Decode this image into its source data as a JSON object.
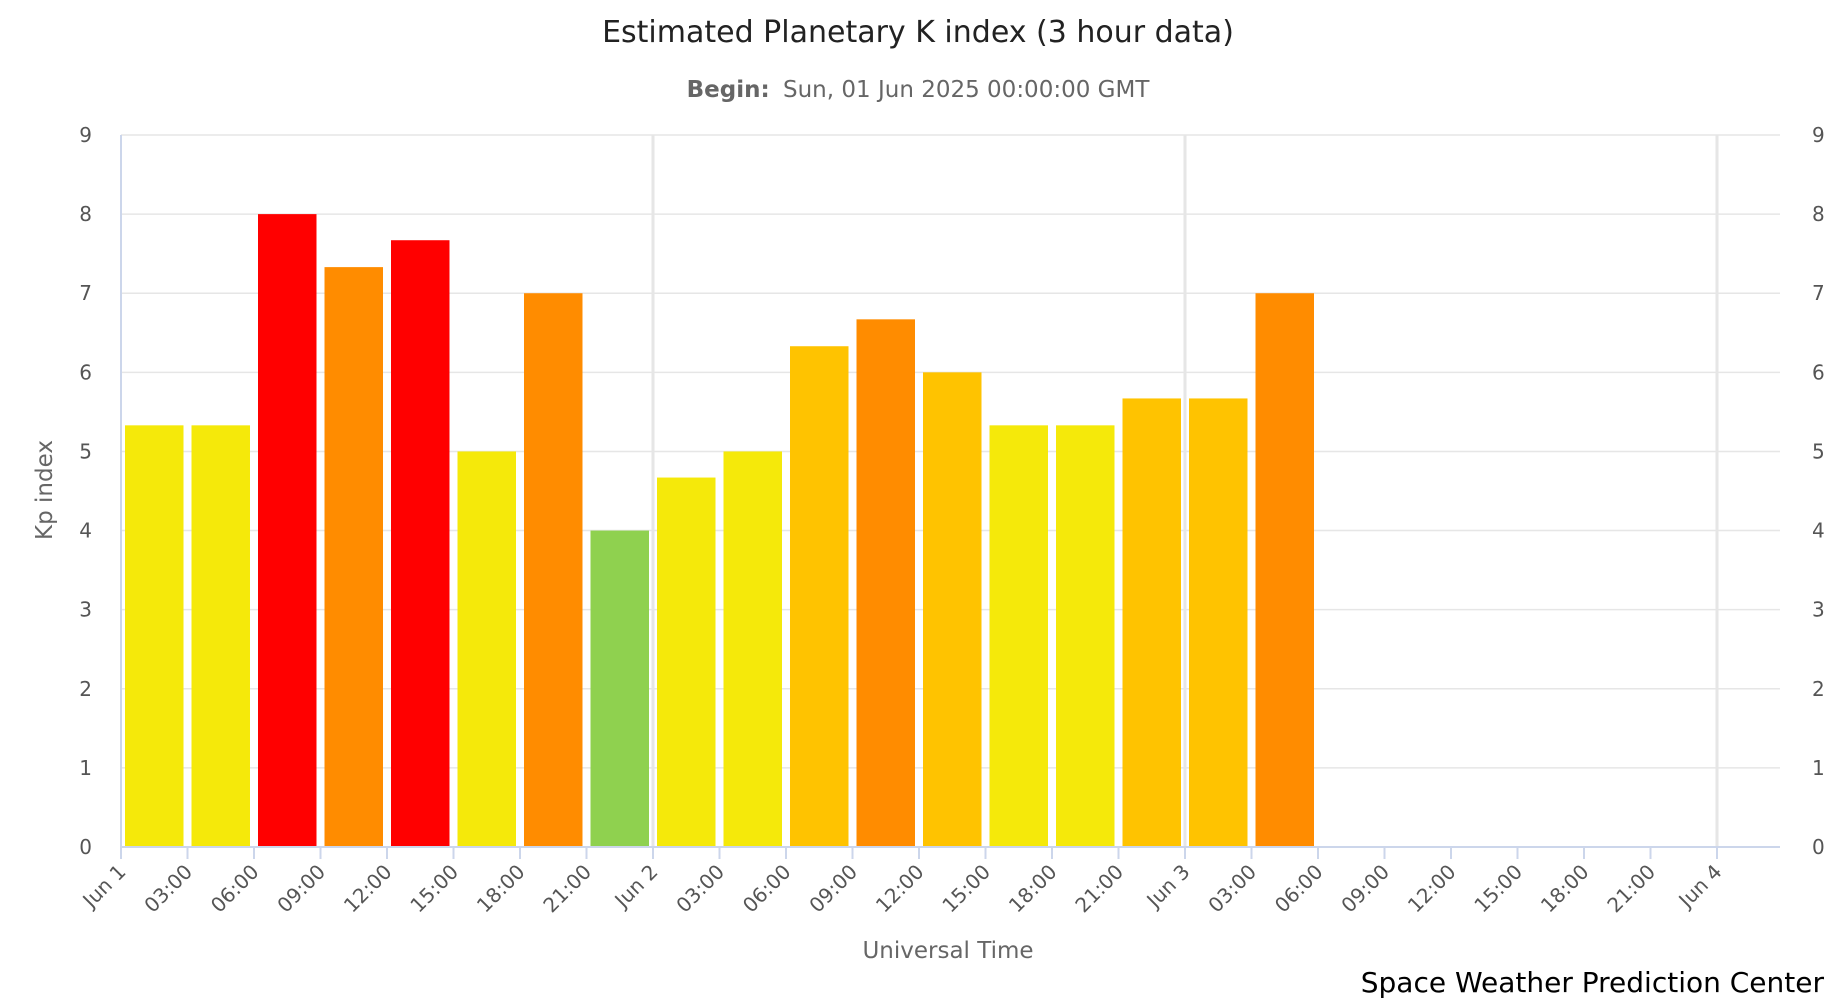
{
  "chart_data": {
    "type": "bar",
    "title": "Estimated Planetary K index (3 hour data)",
    "subtitle_label": "Begin:",
    "subtitle_value": "Sun, 01 Jun 2025 00:00:00 GMT",
    "xlabel": "Universal Time",
    "ylabel": "Kp index",
    "ylim": [
      0,
      9
    ],
    "yticks": [
      "0",
      "1",
      "2",
      "3",
      "4",
      "5",
      "6",
      "7",
      "8",
      "9"
    ],
    "xticks": [
      "Jun 1",
      "03:00",
      "06:00",
      "09:00",
      "12:00",
      "15:00",
      "18:00",
      "21:00",
      "Jun 2",
      "03:00",
      "06:00",
      "09:00",
      "12:00",
      "15:00",
      "18:00",
      "21:00",
      "Jun 3",
      "03:00",
      "06:00",
      "09:00",
      "12:00",
      "15:00",
      "18:00",
      "21:00",
      "Jun 4"
    ],
    "x_slots": 25,
    "grid": true,
    "right_axis": true,
    "values": [
      5.33,
      5.33,
      8.0,
      7.33,
      7.67,
      5.0,
      7.0,
      4.0,
      4.67,
      5.0,
      6.33,
      6.67,
      6.0,
      5.33,
      5.33,
      5.67,
      5.67,
      7.0
    ],
    "colors": [
      "#f5e90a",
      "#f5e90a",
      "#ff0000",
      "#ff8c00",
      "#ff0000",
      "#f5e90a",
      "#ff8c00",
      "#8fd14f",
      "#f5e90a",
      "#f5e90a",
      "#ffc300",
      "#ff8c00",
      "#ffc300",
      "#f5e90a",
      "#f5e90a",
      "#ffc300",
      "#ffc300",
      "#ff8c00"
    ]
  },
  "credit": "Space Weather Prediction Center"
}
